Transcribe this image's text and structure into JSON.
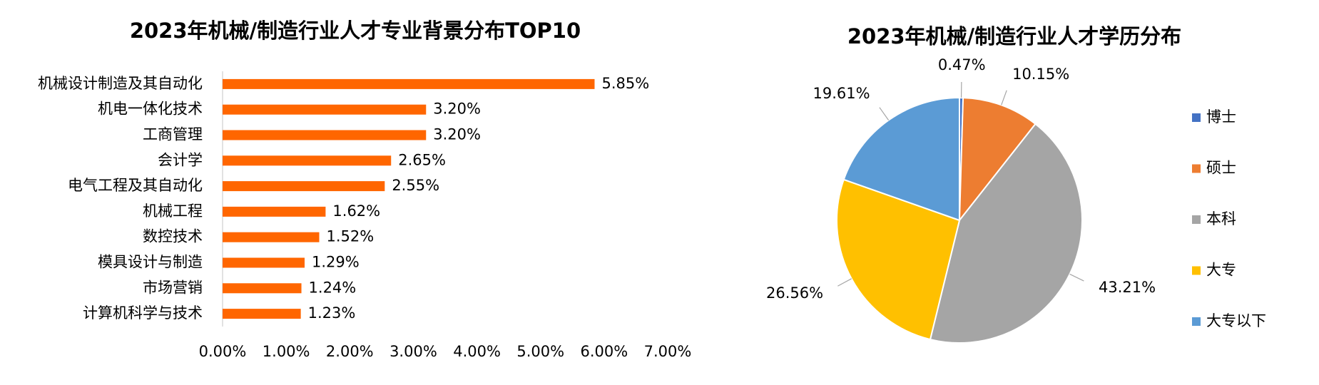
{
  "chart_data": [
    {
      "type": "bar",
      "orientation": "horizontal",
      "title": "2023年机械/制造行业人才专业背景分布TOP10",
      "categories": [
        "机械设计制造及其自动化",
        "机电一体化技术",
        "工商管理",
        "会计学",
        "电气工程及其自动化",
        "机械工程",
        "数控技术",
        "模具设计与制造",
        "市场营销",
        "计算机科学与技术"
      ],
      "values": [
        5.85,
        3.2,
        3.2,
        2.65,
        2.55,
        1.62,
        1.52,
        1.29,
        1.24,
        1.23
      ],
      "value_labels": [
        "5.85%",
        "3.20%",
        "3.20%",
        "2.65%",
        "2.55%",
        "1.62%",
        "1.52%",
        "1.29%",
        "1.24%",
        "1.23%"
      ],
      "color": "#ff6600",
      "xlim": [
        0,
        7
      ],
      "xticks": [
        {
          "value": 0,
          "label": "0.00%"
        },
        {
          "value": 1,
          "label": "1.00%"
        },
        {
          "value": 2,
          "label": "2.00%"
        },
        {
          "value": 3,
          "label": "3.00%"
        },
        {
          "value": 4,
          "label": "4.00%"
        },
        {
          "value": 5,
          "label": "5.00%"
        },
        {
          "value": 6,
          "label": "6.00%"
        },
        {
          "value": 7,
          "label": "7.00%"
        }
      ],
      "grid": false
    },
    {
      "type": "pie",
      "title": "2023年机械/制造行业人才学历分布",
      "categories": [
        "博士",
        "硕士",
        "本科",
        "大专",
        "大专以下"
      ],
      "values": [
        0.47,
        10.15,
        43.21,
        26.56,
        19.61
      ],
      "value_labels": [
        "0.47%",
        "10.15%",
        "43.21%",
        "26.56%",
        "19.61%"
      ],
      "colors": [
        "#4472c4",
        "#ed7d31",
        "#a5a5a5",
        "#ffc000",
        "#5b9bd5"
      ],
      "legend": "right"
    }
  ]
}
